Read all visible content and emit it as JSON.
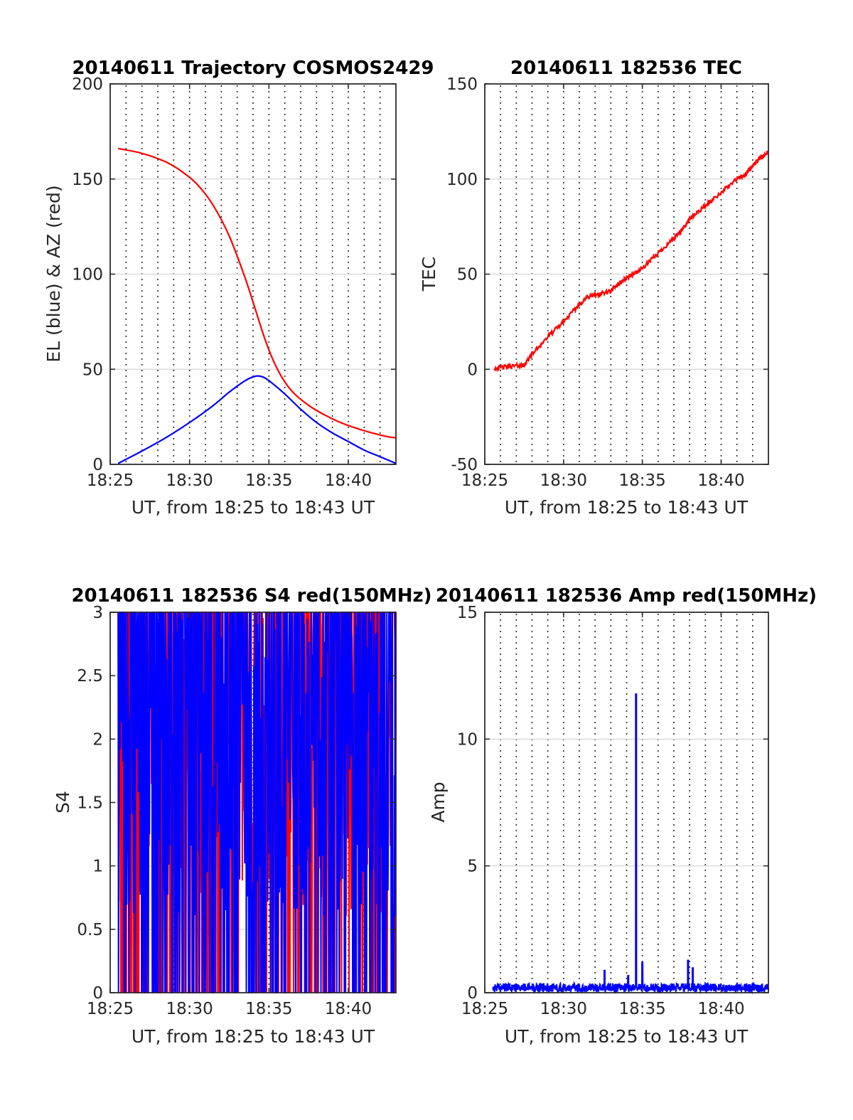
{
  "figure": {
    "background": "#ffffff",
    "red": "#ff0000",
    "blue": "#0000ff"
  },
  "chart_data": [
    {
      "type": "line",
      "title": "20140611 Trajectory COSMOS2429",
      "xlabel": "UT, from 18:25 to 18:43 UT",
      "ylabel": "EL (blue) & AZ (red)",
      "xlim": [
        0,
        18
      ],
      "xtick_values": [
        0,
        5,
        10,
        15
      ],
      "xtick_labels": [
        "18:25",
        "18:30",
        "18:35",
        "18:40"
      ],
      "ylim": [
        0,
        200
      ],
      "yticks": [
        0,
        50,
        100,
        150,
        200
      ],
      "grid": "on",
      "series": [
        {
          "color": "#0000ff",
          "style": "smooth",
          "x": [
            0.5,
            2,
            3.5,
            5,
            6.5,
            7.5,
            8.5,
            9,
            9.3,
            9.6,
            10,
            11,
            12,
            13,
            14,
            15,
            16,
            17,
            18
          ],
          "y": [
            0.5,
            7,
            14,
            22,
            31,
            38,
            44,
            46,
            46.5,
            46,
            44,
            37,
            29,
            22,
            16.5,
            12,
            7.5,
            4,
            0.5
          ]
        },
        {
          "color": "#ff0000",
          "style": "smooth",
          "x": [
            0.5,
            2,
            3.5,
            4.5,
            5.5,
            6.5,
            7.5,
            8.5,
            9.2,
            9.7,
            10.2,
            10.8,
            11.5,
            12.5,
            13.5,
            14.5,
            15.5,
            16.5,
            17.5,
            18
          ],
          "y": [
            166,
            163.5,
            159,
            154,
            147,
            136,
            120,
            98,
            80,
            67,
            56,
            46,
            38,
            31,
            26,
            22,
            19,
            16.5,
            14.5,
            14
          ]
        }
      ]
    },
    {
      "type": "line",
      "title": "20140611 182536 TEC",
      "xlabel": "UT, from 18:25 to 18:43 UT",
      "ylabel": "TEC",
      "xlim": [
        0,
        18
      ],
      "xtick_values": [
        0,
        5,
        10,
        15
      ],
      "xtick_labels": [
        "18:25",
        "18:30",
        "18:35",
        "18:40"
      ],
      "ylim": [
        -50,
        150
      ],
      "yticks": [
        -50,
        0,
        50,
        100,
        150
      ],
      "grid": "on",
      "series": [
        {
          "color": "#ff0000",
          "style": "noisy",
          "x": [
            0.6,
            1.5,
            2.3,
            2.5,
            3,
            4,
            5,
            6,
            6.5,
            7,
            8,
            8.5,
            9,
            10,
            11,
            12,
            12.5,
            13,
            14,
            15,
            16,
            16.5,
            17,
            17.5,
            18
          ],
          "y": [
            0.5,
            1.5,
            2,
            2,
            8,
            17,
            25,
            34,
            38,
            39,
            41,
            45,
            48,
            53,
            61,
            69,
            73,
            79,
            86,
            93,
            100,
            102,
            107,
            111,
            114
          ]
        }
      ]
    },
    {
      "type": "line",
      "title": "20140611 182536 S4 red(150MHz)",
      "xlabel": "UT, from 18:25 to 18:43 UT",
      "ylabel": "S4",
      "xlim": [
        0,
        18
      ],
      "xtick_values": [
        0,
        5,
        10,
        15
      ],
      "xtick_labels": [
        "18:25",
        "18:30",
        "18:35",
        "18:40"
      ],
      "ylim": [
        0,
        3
      ],
      "yticks": [
        0,
        0.5,
        1,
        1.5,
        2,
        2.5,
        3
      ],
      "grid": "on",
      "series": [
        {
          "color": "#ff0000",
          "style": "chaotic",
          "x_range": [
            0.5,
            18
          ],
          "y_band": [
            0.6,
            3
          ],
          "seed": 7
        },
        {
          "color": "#0000ff",
          "style": "chaotic",
          "x_range": [
            0.5,
            18
          ],
          "y_band": [
            0.6,
            3
          ],
          "seed": 13
        }
      ]
    },
    {
      "type": "line",
      "title": "20140611 182536 Amp red(150MHz)",
      "xlabel": "UT, from 18:25 to 18:43 UT",
      "ylabel": "Amp",
      "xlim": [
        0,
        18
      ],
      "xtick_values": [
        0,
        5,
        10,
        15
      ],
      "xtick_labels": [
        "18:25",
        "18:30",
        "18:35",
        "18:40"
      ],
      "ylim": [
        0,
        15
      ],
      "yticks": [
        0,
        5,
        10,
        15
      ],
      "grid": "on",
      "series": [
        {
          "color": "#0000ff",
          "style": "noise_with_spikes",
          "x_range": [
            0.5,
            18
          ],
          "baseline": 0.2,
          "spikes": [
            {
              "x": 9.6,
              "y": 11.8
            },
            {
              "x": 7.6,
              "y": 0.9
            },
            {
              "x": 9.1,
              "y": 0.7
            },
            {
              "x": 10.0,
              "y": 1.2
            },
            {
              "x": 12.9,
              "y": 1.3
            },
            {
              "x": 13.2,
              "y": 1.0
            }
          ]
        }
      ]
    }
  ]
}
